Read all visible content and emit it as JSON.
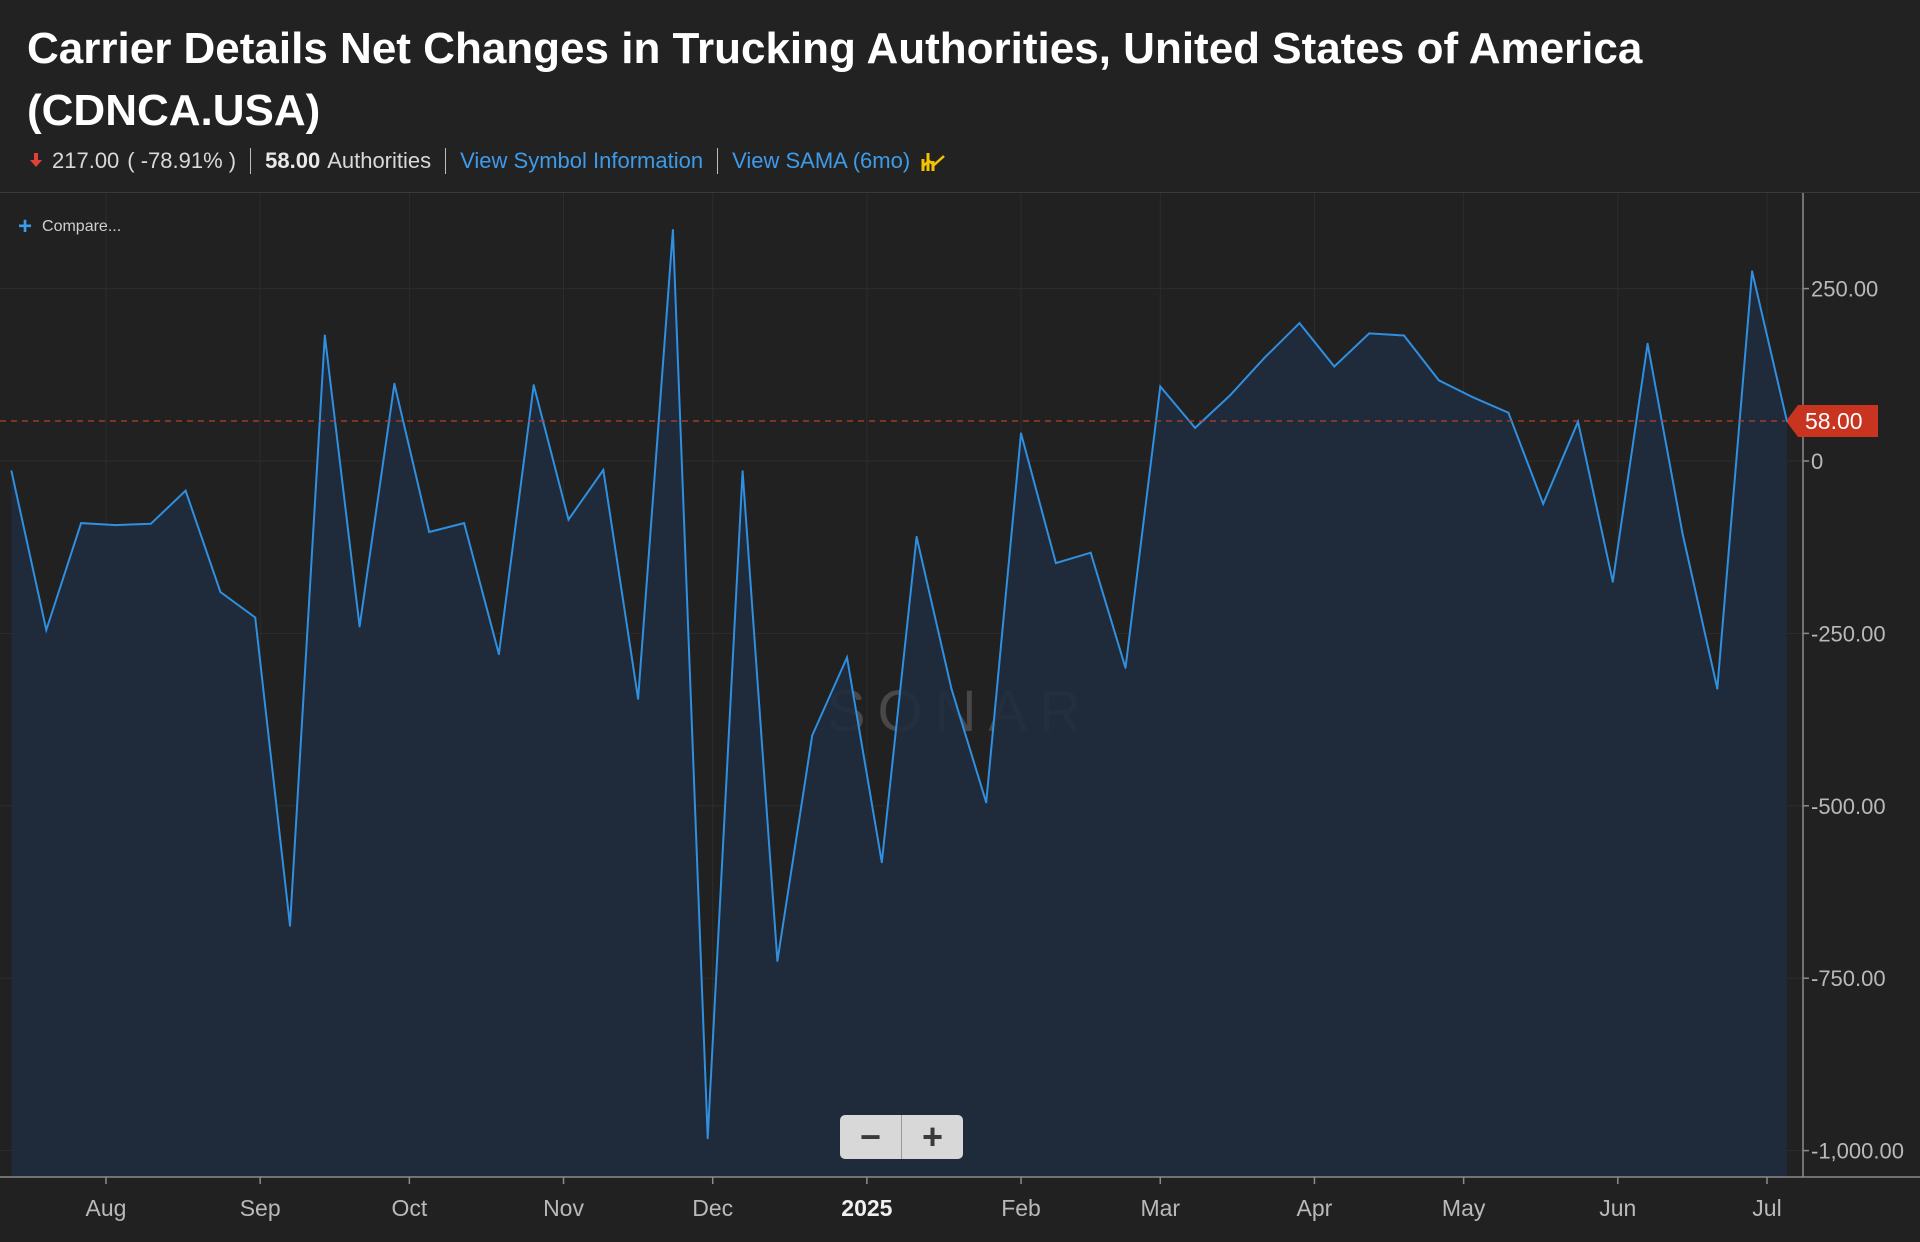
{
  "header": {
    "title": "Carrier Details Net Changes in Trucking Authorities, United States of America (CDNCA.USA)",
    "change_value": "217.00",
    "change_pct": "( -78.91% )",
    "current_value": "58.00",
    "unit": "Authorities",
    "link_symbol": "View Symbol Information",
    "link_sama": "View SAMA (6mo)"
  },
  "toolbar": {
    "compare_label": "Compare...",
    "zoom_out": "−",
    "zoom_in": "+"
  },
  "watermark": "SONAR",
  "colors": {
    "line": "#2f8fe0",
    "area": "#1f2b3d",
    "current_badge": "#c8341f",
    "link": "#3d9be9",
    "down": "#e0413a",
    "background": "#212121"
  },
  "chart_data": {
    "type": "area",
    "title": "Carrier Details Net Changes in Trucking Authorities, United States of America (CDNCA.USA)",
    "ylabel": "",
    "xlabel": "",
    "ylim": [
      -1000,
      330
    ],
    "y_ticks": [
      250,
      0,
      -250,
      -500,
      -750,
      -1000
    ],
    "y_tick_labels": [
      "250.00",
      "0",
      "-250.00",
      "-500.00",
      "-750.00",
      "-1,000.00"
    ],
    "x_tick_labels": [
      "Aug",
      "Sep",
      "Oct",
      "Nov",
      "Dec",
      "2025",
      "Feb",
      "Mar",
      "Apr",
      "May",
      "Jun",
      "Jul"
    ],
    "x_tick_dates": [
      "2024-08-01",
      "2024-09-01",
      "2024-10-01",
      "2024-11-01",
      "2024-12-01",
      "2025-01-01",
      "2025-02-01",
      "2025-03-01",
      "2025-04-01",
      "2025-05-01",
      "2025-06-01",
      "2025-07-01"
    ],
    "current_value_label": "58.00",
    "current_value": 58,
    "grid": true,
    "series": [
      {
        "points": [
          {
            "x": "2024-07-13",
            "y": -15
          },
          {
            "x": "2024-07-20",
            "y": -245
          },
          {
            "x": "2024-07-27",
            "y": -90
          },
          {
            "x": "2024-08-03",
            "y": -93
          },
          {
            "x": "2024-08-10",
            "y": -91
          },
          {
            "x": "2024-08-17",
            "y": -43
          },
          {
            "x": "2024-08-24",
            "y": -190
          },
          {
            "x": "2024-08-31",
            "y": -227
          },
          {
            "x": "2024-09-07",
            "y": -674
          },
          {
            "x": "2024-09-14",
            "y": 182
          },
          {
            "x": "2024-09-21",
            "y": -240
          },
          {
            "x": "2024-09-28",
            "y": 112
          },
          {
            "x": "2024-10-05",
            "y": -103
          },
          {
            "x": "2024-10-12",
            "y": -90
          },
          {
            "x": "2024-10-19",
            "y": -280
          },
          {
            "x": "2024-10-26",
            "y": 110
          },
          {
            "x": "2024-11-02",
            "y": -85
          },
          {
            "x": "2024-11-09",
            "y": -13
          },
          {
            "x": "2024-11-16",
            "y": -345
          },
          {
            "x": "2024-11-23",
            "y": 335
          },
          {
            "x": "2024-11-30",
            "y": -982
          },
          {
            "x": "2024-12-07",
            "y": -15
          },
          {
            "x": "2024-12-14",
            "y": -725
          },
          {
            "x": "2024-12-21",
            "y": -398
          },
          {
            "x": "2024-12-28",
            "y": -285
          },
          {
            "x": "2025-01-04",
            "y": -582
          },
          {
            "x": "2025-01-11",
            "y": -110
          },
          {
            "x": "2025-01-18",
            "y": -330
          },
          {
            "x": "2025-01-25",
            "y": -495
          },
          {
            "x": "2025-02-01",
            "y": 40
          },
          {
            "x": "2025-02-08",
            "y": -148
          },
          {
            "x": "2025-02-15",
            "y": -133
          },
          {
            "x": "2025-02-22",
            "y": -300
          },
          {
            "x": "2025-03-01",
            "y": 108
          },
          {
            "x": "2025-03-08",
            "y": 48
          },
          {
            "x": "2025-03-15",
            "y": 95
          },
          {
            "x": "2025-03-22",
            "y": 150
          },
          {
            "x": "2025-03-29",
            "y": 200
          },
          {
            "x": "2025-04-05",
            "y": 137
          },
          {
            "x": "2025-04-12",
            "y": 185
          },
          {
            "x": "2025-04-19",
            "y": 182
          },
          {
            "x": "2025-04-26",
            "y": 117
          },
          {
            "x": "2025-05-03",
            "y": 92
          },
          {
            "x": "2025-05-10",
            "y": 70
          },
          {
            "x": "2025-05-17",
            "y": -62
          },
          {
            "x": "2025-05-24",
            "y": 57
          },
          {
            "x": "2025-05-31",
            "y": -175
          },
          {
            "x": "2025-06-07",
            "y": 170
          },
          {
            "x": "2025-06-14",
            "y": -105
          },
          {
            "x": "2025-06-21",
            "y": -330
          },
          {
            "x": "2025-06-28",
            "y": 275
          },
          {
            "x": "2025-07-05",
            "y": 58
          }
        ]
      }
    ]
  }
}
